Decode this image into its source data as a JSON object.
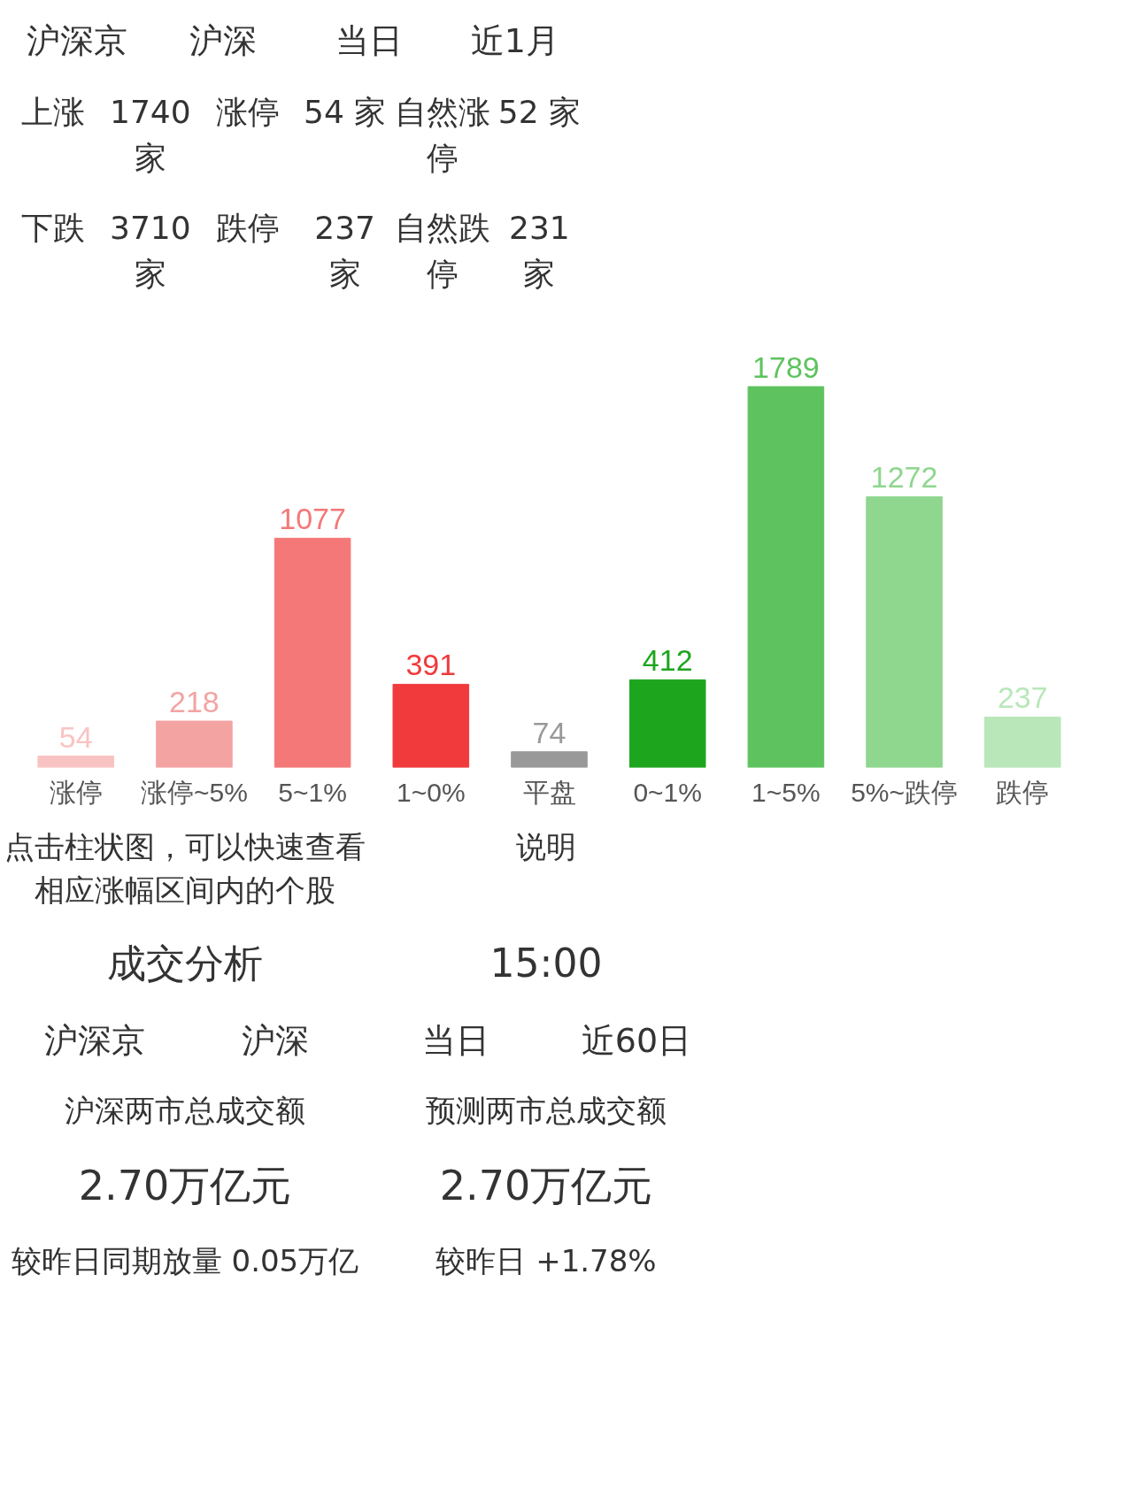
{
  "chart_data": {
    "type": "bar",
    "categories": [
      "涨停",
      "涨停~5%",
      "5~1%",
      "1~0%",
      "平盘",
      "0~1%",
      "1~5%",
      "5%~跌停",
      "跌停"
    ],
    "values": [
      54,
      218,
      1077,
      391,
      74,
      412,
      1789,
      1272,
      237
    ],
    "colors": [
      "#f9c3c3",
      "#f4a3a3",
      "#f47878",
      "#f03a3c",
      "#999999",
      "#1ea51e",
      "#5ec35e",
      "#8fd68f",
      "#b9e7b9"
    ],
    "data_labels": true,
    "annotations": [
      "沪深京",
      "沪深",
      "当日",
      "近1月",
      "上涨",
      "1740 家",
      "涨停",
      "54 家",
      "自然涨停",
      "52 家",
      "下跌",
      "3710 家",
      "跌停",
      "237 家",
      "自然跌停",
      "231 家",
      "点击柱状图，可以快速查看相应涨幅区间内的个股",
      "说明",
      "成交分析",
      "15:00",
      "沪深京",
      "沪深",
      "当日",
      "近60日",
      "沪深两市总成交额",
      "预测两市总成交额",
      "2.70万亿元",
      "2.70万亿元",
      "较昨日同期放量 0.05万亿",
      "较昨日 +1.78%"
    ]
  }
}
